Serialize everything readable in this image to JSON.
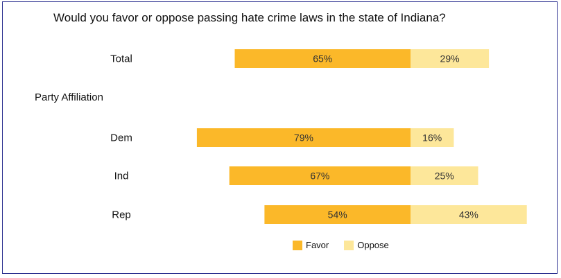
{
  "chart_data": {
    "type": "bar",
    "orientation": "horizontal",
    "stacked": true,
    "title": "Would you favor or oppose passing hate crime laws in the state of Indiana?",
    "group_label": "Party Affiliation",
    "categories": [
      "Total",
      "Dem",
      "Ind",
      "Rep"
    ],
    "series": [
      {
        "name": "Favor",
        "values": [
          65,
          79,
          67,
          54
        ],
        "labels": [
          "65%",
          "79%",
          "67%",
          "54%"
        ],
        "color": "#fbb829"
      },
      {
        "name": "Oppose",
        "values": [
          29,
          16,
          25,
          43
        ],
        "labels": [
          "29%",
          "16%",
          "25%",
          "43%"
        ],
        "color": "#fde79a"
      }
    ],
    "unit": "%",
    "grid": false,
    "legend_position": "bottom"
  }
}
